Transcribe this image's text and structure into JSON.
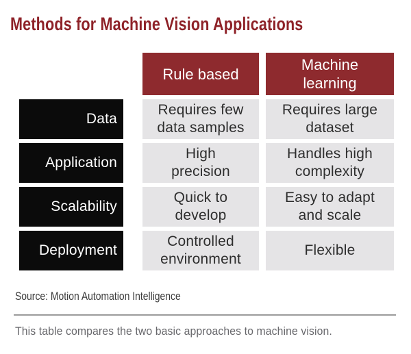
{
  "title": "Methods for Machine Vision Applications",
  "table": {
    "headers": [
      "Rule based",
      "Machine\nlearning"
    ],
    "rows": [
      {
        "label": "Data",
        "cells": [
          "Requires few\ndata samples",
          "Requires large\ndataset"
        ]
      },
      {
        "label": "Application",
        "cells": [
          "High\nprecision",
          "Handles high\ncomplexity"
        ]
      },
      {
        "label": "Scalability",
        "cells": [
          "Quick to\ndevelop",
          "Easy to adapt\nand scale"
        ]
      },
      {
        "label": "Deployment",
        "cells": [
          "Controlled\nenvironment",
          "Flexible"
        ]
      }
    ]
  },
  "source": "Source: Motion Automation Intelligence",
  "caption": "This table compares the two basic approaches to machine vision.",
  "colors": {
    "title_maroon": "#8e2228",
    "header_maroon": "#8e2a2e",
    "row_label_black": "#0b0b0b",
    "cell_gray": "#e5e4e6",
    "cell_text": "#2e2e2e",
    "source_text": "#3b3b3b",
    "caption_gray": "#68686c",
    "divider_gray": "#9b9b9b",
    "background": "#ffffff"
  },
  "chart_data": {
    "type": "table",
    "title": "Methods for Machine Vision Applications",
    "columns": [
      "",
      "Rule based",
      "Machine learning"
    ],
    "rows": [
      [
        "Data",
        "Requires few data samples",
        "Requires large dataset"
      ],
      [
        "Application",
        "High precision",
        "Handles high complexity"
      ],
      [
        "Scalability",
        "Quick to develop",
        "Easy to adapt and scale"
      ],
      [
        "Deployment",
        "Controlled environment",
        "Flexible"
      ]
    ],
    "source": "Source: Motion Automation Intelligence",
    "caption": "This table compares the two basic approaches to machine vision."
  }
}
